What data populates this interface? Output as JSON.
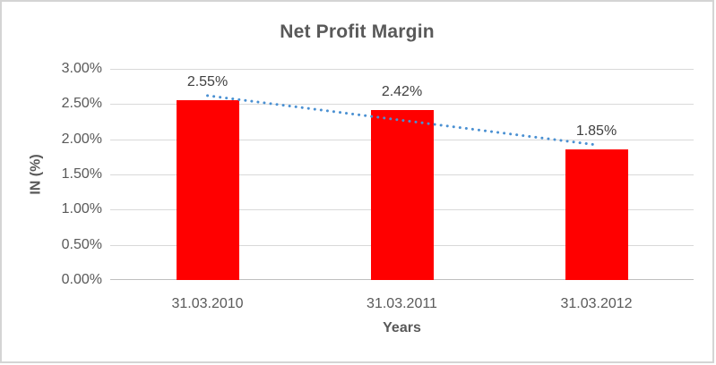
{
  "chart_data": {
    "type": "bar",
    "title": "Net Profit Margin",
    "xlabel": "Years",
    "ylabel": "IN (%)",
    "categories": [
      "31.03.2010",
      "31.03.2011",
      "31.03.2012"
    ],
    "values": [
      2.55,
      2.42,
      1.85
    ],
    "data_labels": [
      "2.55%",
      "2.42%",
      "1.85%"
    ],
    "yticks": [
      "3.00%",
      "2.50%",
      "2.00%",
      "1.50%",
      "1.00%",
      "0.50%",
      "0.00%"
    ],
    "ylim": [
      0,
      3
    ],
    "grid": true,
    "legend": "none",
    "bar_color": "#ff0000",
    "gridline_color": "#d9d9d9",
    "axis_line_color": "#bfbfbf",
    "text_color": "#595959",
    "data_label_color": "#404040",
    "trendline": {
      "type": "linear",
      "style": "dotted",
      "color": "#4a90d2",
      "fitted_endpoints": [
        2.62,
        1.92
      ]
    }
  }
}
